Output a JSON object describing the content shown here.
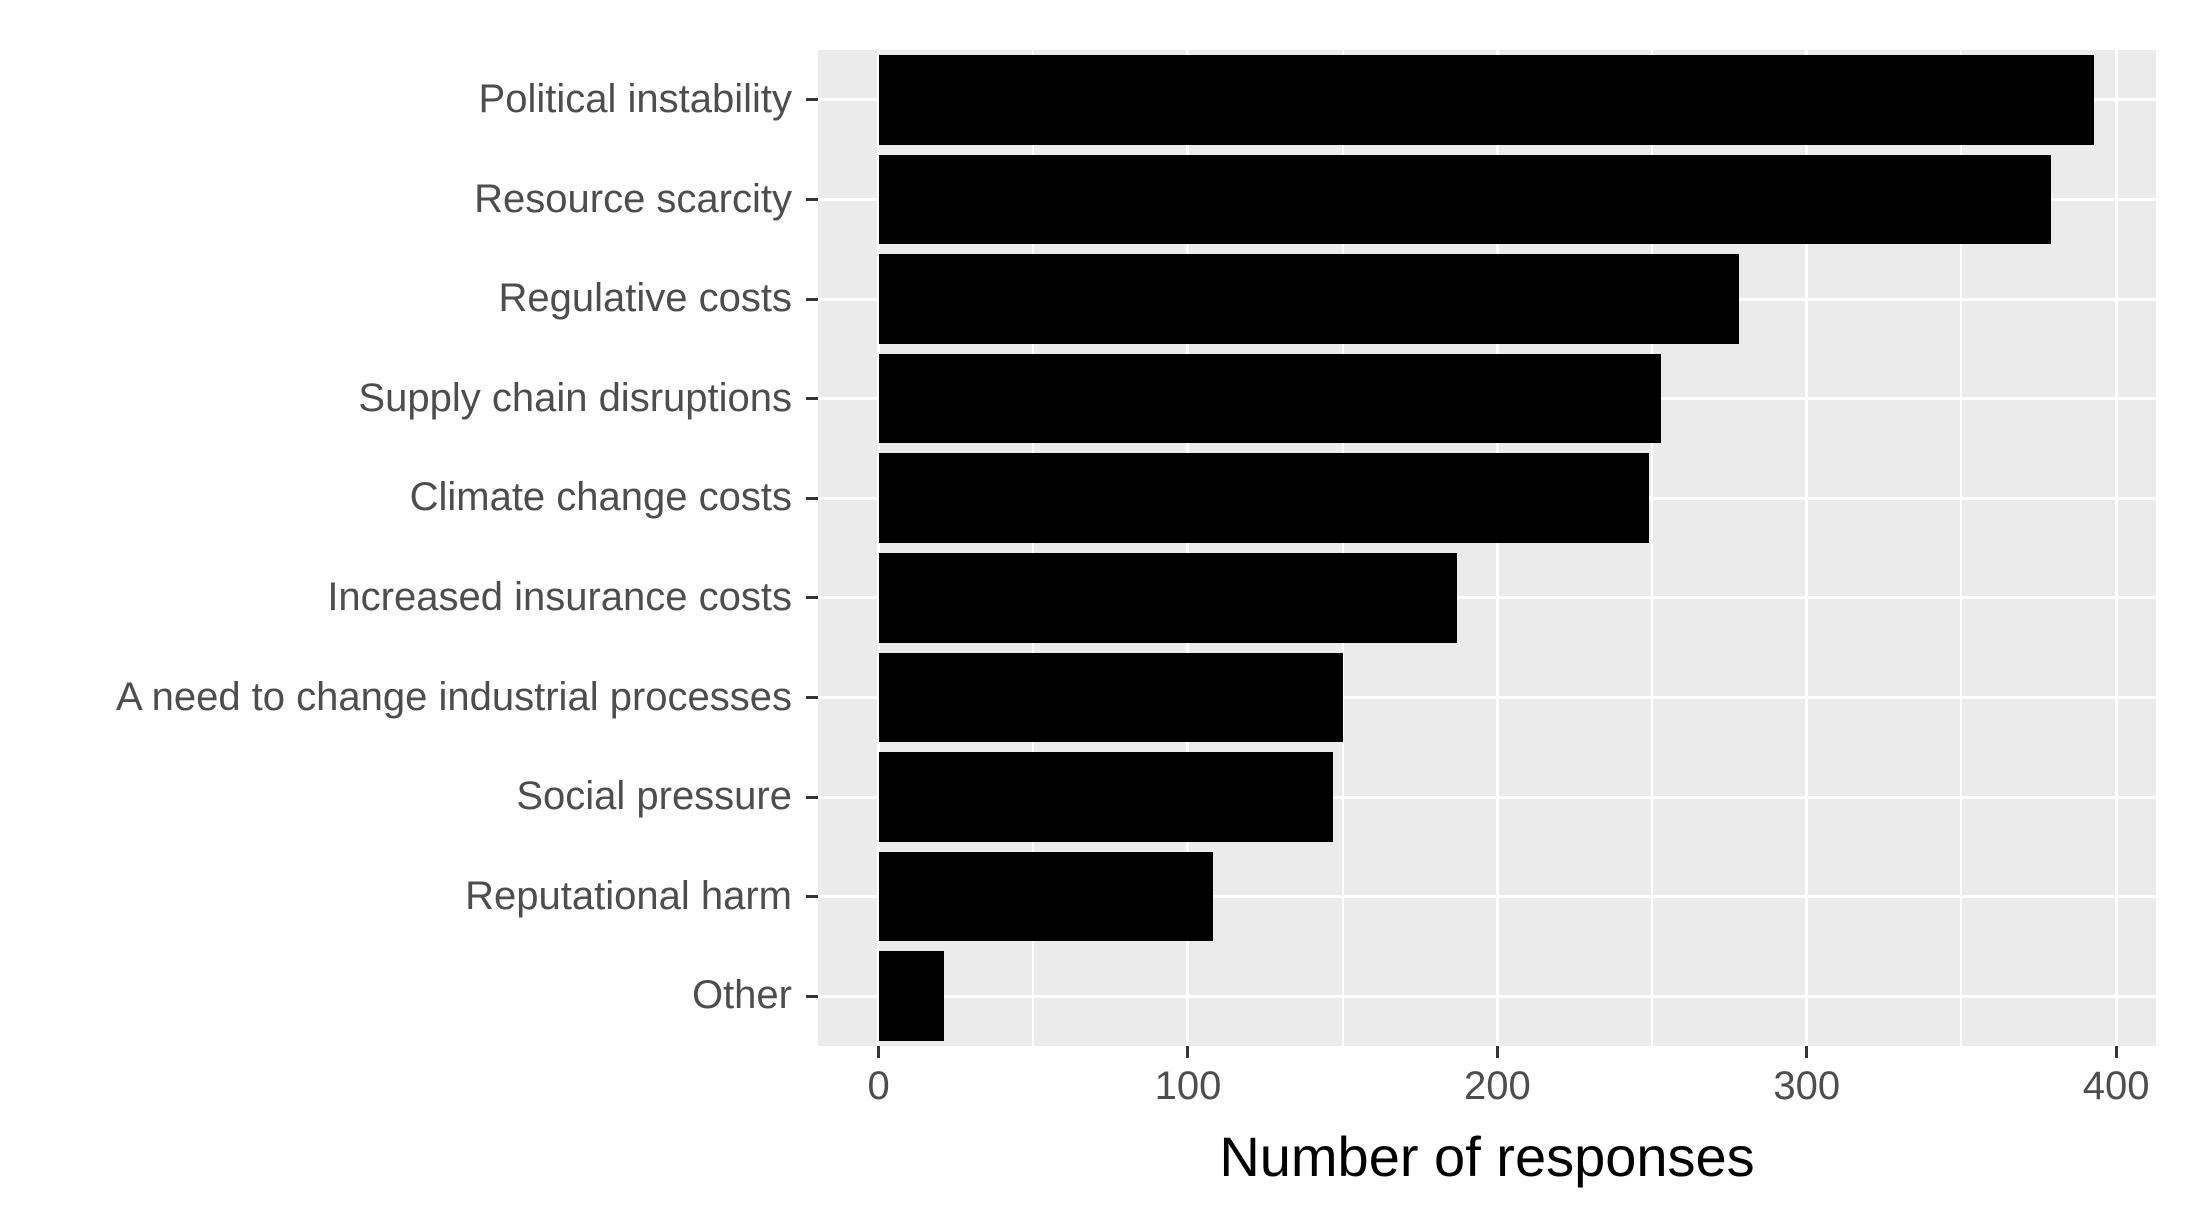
{
  "chart_data": {
    "type": "bar",
    "orientation": "horizontal",
    "title": "",
    "xlabel": "Number of responses",
    "ylabel": "",
    "categories": [
      "Political instability",
      "Resource scarcity",
      "Regulative costs",
      "Supply chain disruptions",
      "Climate change costs",
      "Increased insurance costs",
      "A need to change industrial processes",
      "Social pressure",
      "Reputational harm",
      "Other"
    ],
    "values": [
      393,
      379,
      278,
      253,
      249,
      187,
      150,
      147,
      108,
      21
    ],
    "x_ticks": [
      0,
      100,
      200,
      300,
      400
    ],
    "x_minor_ticks": [
      50,
      150,
      250,
      350
    ],
    "xlim": [
      -19.6,
      412.9
    ],
    "grid": true,
    "legend": false,
    "colors": {
      "bar": "#000000",
      "panel_bg": "#EBEBEB",
      "grid": "#FFFFFF",
      "axis_text": "#4D4D4D",
      "axis_title": "#000000",
      "tick_mark": "#333333",
      "background": "#FFFFFF"
    }
  }
}
